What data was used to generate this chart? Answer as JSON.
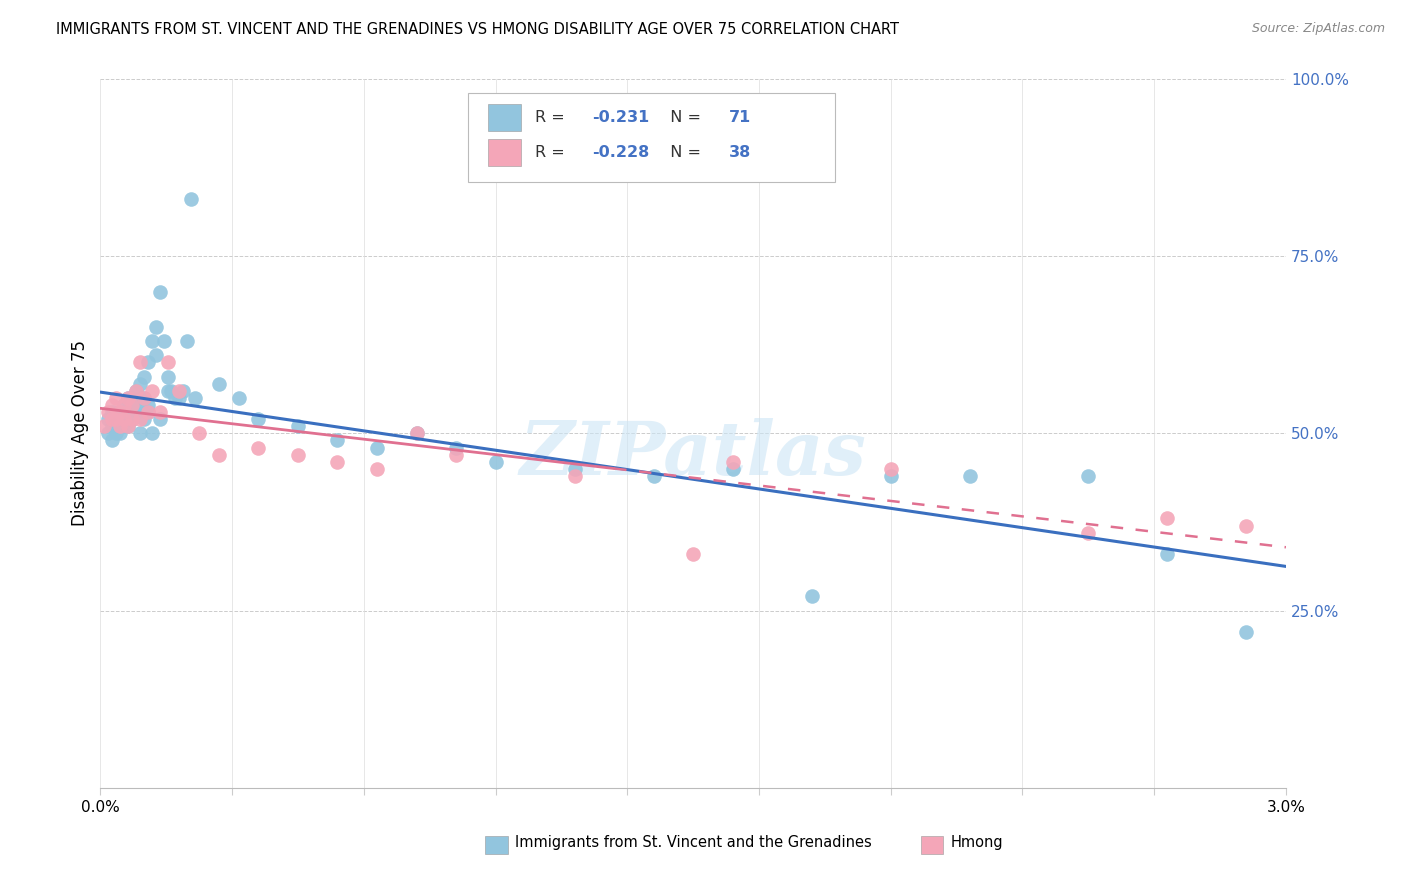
{
  "title": "IMMIGRANTS FROM ST. VINCENT AND THE GRENADINES VS HMONG DISABILITY AGE OVER 75 CORRELATION CHART",
  "source": "Source: ZipAtlas.com",
  "ylabel": "Disability Age Over 75",
  "legend_label1": "Immigrants from St. Vincent and the Grenadines",
  "legend_label2": "Hmong",
  "r1": -0.231,
  "n1": 71,
  "r2": -0.228,
  "n2": 38,
  "color_blue": "#92c5de",
  "color_blue_line": "#3a6fbf",
  "color_pink": "#f4a6b8",
  "color_pink_line": "#e07090",
  "watermark": "ZIPatlas",
  "blue_x": [
    0.0002,
    0.0003,
    0.0003,
    0.0004,
    0.0004,
    0.0005,
    0.0005,
    0.0005,
    0.0006,
    0.0006,
    0.0006,
    0.0007,
    0.0007,
    0.0007,
    0.0008,
    0.0008,
    0.0008,
    0.0009,
    0.0009,
    0.001,
    0.001,
    0.001,
    0.0011,
    0.0011,
    0.0012,
    0.0012,
    0.0013,
    0.0014,
    0.0014,
    0.0015,
    0.0016,
    0.0017,
    0.0018,
    0.002,
    0.0022,
    0.0024,
    0.003,
    0.0035,
    0.004,
    0.005,
    0.006,
    0.007,
    0.008,
    0.009,
    0.01,
    0.012,
    0.014,
    0.016,
    0.018,
    0.02,
    0.022,
    0.025,
    0.027,
    0.029,
    0.0002,
    0.0003,
    0.0004,
    0.0005,
    0.0006,
    0.0007,
    0.0008,
    0.0009,
    0.001,
    0.0011,
    0.0012,
    0.0013,
    0.0015,
    0.0017,
    0.0019,
    0.0021,
    0.0023
  ],
  "blue_y": [
    0.52,
    0.51,
    0.53,
    0.5,
    0.52,
    0.51,
    0.53,
    0.52,
    0.51,
    0.53,
    0.54,
    0.52,
    0.53,
    0.55,
    0.52,
    0.54,
    0.55,
    0.53,
    0.56,
    0.54,
    0.55,
    0.57,
    0.55,
    0.58,
    0.53,
    0.6,
    0.63,
    0.61,
    0.65,
    0.7,
    0.63,
    0.58,
    0.56,
    0.55,
    0.63,
    0.55,
    0.57,
    0.55,
    0.52,
    0.51,
    0.49,
    0.48,
    0.5,
    0.48,
    0.46,
    0.45,
    0.44,
    0.45,
    0.27,
    0.44,
    0.44,
    0.44,
    0.33,
    0.22,
    0.5,
    0.49,
    0.51,
    0.5,
    0.52,
    0.51,
    0.52,
    0.53,
    0.5,
    0.52,
    0.54,
    0.5,
    0.52,
    0.56,
    0.55,
    0.56,
    0.83
  ],
  "pink_x": [
    0.0001,
    0.0002,
    0.0003,
    0.0003,
    0.0004,
    0.0004,
    0.0005,
    0.0005,
    0.0006,
    0.0006,
    0.0007,
    0.0007,
    0.0008,
    0.0008,
    0.0009,
    0.001,
    0.001,
    0.0011,
    0.0012,
    0.0013,
    0.0015,
    0.0017,
    0.002,
    0.0025,
    0.003,
    0.004,
    0.005,
    0.006,
    0.007,
    0.008,
    0.009,
    0.012,
    0.016,
    0.02,
    0.025,
    0.027,
    0.029,
    0.015
  ],
  "pink_y": [
    0.51,
    0.53,
    0.52,
    0.54,
    0.52,
    0.55,
    0.51,
    0.53,
    0.52,
    0.54,
    0.51,
    0.55,
    0.52,
    0.54,
    0.56,
    0.52,
    0.6,
    0.55,
    0.53,
    0.56,
    0.53,
    0.6,
    0.56,
    0.5,
    0.47,
    0.48,
    0.47,
    0.46,
    0.45,
    0.5,
    0.47,
    0.44,
    0.46,
    0.45,
    0.36,
    0.38,
    0.37,
    0.33
  ],
  "xlim": [
    0,
    0.03
  ],
  "ylim": [
    0,
    1.0
  ],
  "yticks": [
    0.0,
    0.25,
    0.5,
    0.75,
    1.0
  ],
  "ytick_labels_right": [
    "",
    "25.0%",
    "50.0%",
    "75.0%",
    "100.0%"
  ],
  "xtick_labels": [
    "0.0%",
    "",
    "",
    "",
    "",
    "",
    "",
    "",
    "",
    "3.0%"
  ]
}
